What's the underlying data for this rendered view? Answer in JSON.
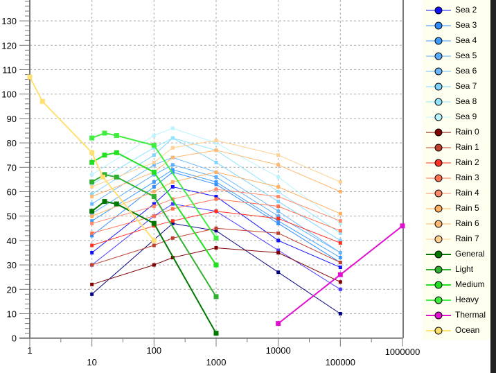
{
  "chart_data": {
    "type": "line",
    "title": "",
    "xlabel": "",
    "ylabel": "",
    "xscale": "log",
    "xlim": [
      1,
      1000000
    ],
    "ylim": [
      0,
      140
    ],
    "grid": true,
    "legend_placement": "right",
    "x_ticks": [
      "1",
      "10",
      "100",
      "1000",
      "10000",
      "100000",
      "1000000"
    ],
    "y_ticks": [
      "0",
      "10",
      "20",
      "30",
      "40",
      "50",
      "60",
      "70",
      "80",
      "90",
      "100",
      "110",
      "120",
      "130"
    ],
    "series": [
      {
        "name": "",
        "color": "#000080",
        "width": 1,
        "x": [
          10,
          200,
          1000,
          10000,
          100000
        ],
        "y": [
          18,
          47,
          44,
          27,
          10
        ]
      },
      {
        "name": "",
        "color": "#4a3cff",
        "width": 1,
        "x": [
          10,
          100,
          200,
          1000,
          10000,
          100000
        ],
        "y": [
          30,
          50,
          55,
          52,
          36,
          20
        ]
      },
      {
        "name": "Sea 2",
        "color": "#1010ff",
        "width": 1,
        "x": [
          10,
          100,
          200,
          1000,
          10000,
          100000
        ],
        "y": [
          35,
          55,
          62,
          58,
          40,
          29
        ]
      },
      {
        "name": "Sea 3",
        "color": "#2f8cff",
        "width": 1,
        "x": [
          10,
          100,
          200,
          1000,
          10000,
          100000
        ],
        "y": [
          42,
          62,
          68,
          63,
          47,
          31
        ]
      },
      {
        "name": "Sea 4",
        "color": "#3c9cff",
        "width": 1,
        "x": [
          10,
          100,
          200,
          1000,
          10000,
          100000
        ],
        "y": [
          48,
          64,
          69,
          64,
          48,
          33
        ]
      },
      {
        "name": "Sea 5",
        "color": "#5aacff",
        "width": 1,
        "x": [
          10,
          100,
          200,
          1000,
          10000,
          100000
        ],
        "y": [
          51,
          67,
          71,
          66,
          50,
          35
        ]
      },
      {
        "name": "Sea 6",
        "color": "#6cb8ff",
        "width": 1,
        "x": [
          10,
          100,
          200,
          1000,
          10000,
          100000
        ],
        "y": [
          55,
          71,
          74,
          68,
          52,
          35
        ]
      },
      {
        "name": "Sea 7",
        "color": "#7ed4ff",
        "width": 1,
        "x": [
          10,
          100,
          200,
          1000,
          10000,
          100000
        ],
        "y": [
          59,
          75,
          82,
          72,
          56,
          40
        ]
      },
      {
        "name": "Sea 8",
        "color": "#90e4ff",
        "width": 1,
        "x": [
          10,
          100,
          200,
          1000,
          10000,
          100000
        ],
        "y": [
          63,
          78,
          82,
          77,
          60,
          43
        ]
      },
      {
        "name": "Sea 9",
        "color": "#b8f4ff",
        "width": 1,
        "x": [
          10,
          100,
          200,
          1000,
          10000,
          100000
        ],
        "y": [
          67,
          83,
          86,
          80,
          66,
          47
        ]
      },
      {
        "name": "Rain 0",
        "color": "#800000",
        "width": 1,
        "x": [
          10,
          100,
          200,
          1000,
          10000,
          100000
        ],
        "y": [
          22,
          30,
          33,
          37,
          35,
          23
        ]
      },
      {
        "name": "Rain 1",
        "color": "#c04030",
        "width": 1,
        "x": [
          10,
          100,
          200,
          1000,
          10000,
          100000
        ],
        "y": [
          30,
          38,
          41,
          45,
          43,
          31
        ]
      },
      {
        "name": "Rain 2",
        "color": "#ff3020",
        "width": 1,
        "x": [
          10,
          100,
          200,
          1000,
          10000,
          100000
        ],
        "y": [
          38,
          46,
          48,
          52,
          49,
          39
        ]
      },
      {
        "name": "Rain 3",
        "color": "#ff7050",
        "width": 1,
        "x": [
          10,
          100,
          200,
          1000,
          10000,
          100000
        ],
        "y": [
          43,
          50,
          53,
          57,
          54,
          44
        ]
      },
      {
        "name": "Rain 4",
        "color": "#ff8a6a",
        "width": 1,
        "x": [
          10,
          100,
          200,
          1000,
          10000,
          100000
        ],
        "y": [
          47,
          54,
          57,
          61,
          58,
          48
        ]
      },
      {
        "name": "Rain 5",
        "color": "#ffb060",
        "width": 1,
        "x": [
          10,
          100,
          200,
          1000,
          10000,
          100000
        ],
        "y": [
          50,
          60,
          64,
          68,
          62,
          51
        ]
      },
      {
        "name": "Rain 6",
        "color": "#ffb870",
        "width": 1,
        "x": [
          10,
          100,
          200,
          1000,
          10000,
          100000
        ],
        "y": [
          58,
          68,
          74,
          77,
          71,
          60
        ]
      },
      {
        "name": "Rain 7",
        "color": "#ffd090",
        "width": 1,
        "x": [
          10,
          100,
          200,
          1000,
          10000,
          100000
        ],
        "y": [
          62,
          72,
          78,
          81,
          75,
          64
        ]
      },
      {
        "name": "General",
        "color": "#007800",
        "width": 2,
        "x": [
          10,
          16,
          25,
          100,
          1000
        ],
        "y": [
          52,
          56,
          55,
          47,
          2
        ]
      },
      {
        "name": "Light",
        "color": "#30b030",
        "width": 2,
        "x": [
          10,
          16,
          25,
          100,
          1000
        ],
        "y": [
          64,
          67,
          66,
          58,
          17
        ]
      },
      {
        "name": "Medium",
        "color": "#20e020",
        "width": 2,
        "x": [
          10,
          16,
          25,
          100,
          1000
        ],
        "y": [
          72,
          75,
          76,
          68,
          30
        ]
      },
      {
        "name": "Heavy",
        "color": "#40ee40",
        "width": 2,
        "x": [
          10,
          16,
          25,
          100,
          1000
        ],
        "y": [
          82,
          84,
          83,
          79,
          41
        ]
      },
      {
        "name": "Thermal",
        "color": "#e010d0",
        "width": 2,
        "x": [
          10000,
          100000,
          1000000
        ],
        "y": [
          6,
          26,
          46
        ]
      },
      {
        "name": "Ocean",
        "color": "#ffe070",
        "width": 2,
        "x": [
          1,
          1.6,
          10,
          15,
          100
        ],
        "y": [
          107,
          97,
          76,
          66,
          40
        ]
      }
    ]
  }
}
